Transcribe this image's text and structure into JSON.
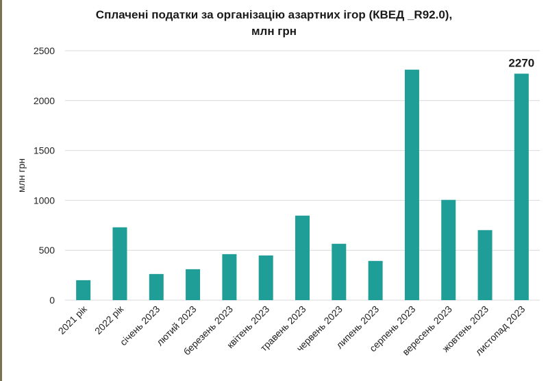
{
  "chart_data": {
    "type": "bar",
    "title_line1": "Сплачені податки за організацію азартних ігор (КВЕД _R92.0),",
    "title_line2": "млн грн",
    "ylabel": "млн грн",
    "xlabel": "",
    "ylim": [
      0,
      2500
    ],
    "yticks": [
      0,
      500,
      1000,
      1500,
      2000,
      2500
    ],
    "grid": true,
    "bar_color": "#1f9e97",
    "categories": [
      "2021 рік",
      "2022 рік",
      "січень 2023",
      "лютий 2023",
      "березень 2023",
      "квітень 2023",
      "травень 2023",
      "червень 2023",
      "липень 2023",
      "серпень 2023",
      "вересень 2023",
      "жовтень 2023",
      "листопад 2023"
    ],
    "values": [
      200,
      730,
      262,
      310,
      461,
      448,
      847,
      565,
      393,
      2310,
      1005,
      702,
      2270
    ],
    "data_labels": [
      {
        "index": 12,
        "text": "2270"
      }
    ]
  }
}
